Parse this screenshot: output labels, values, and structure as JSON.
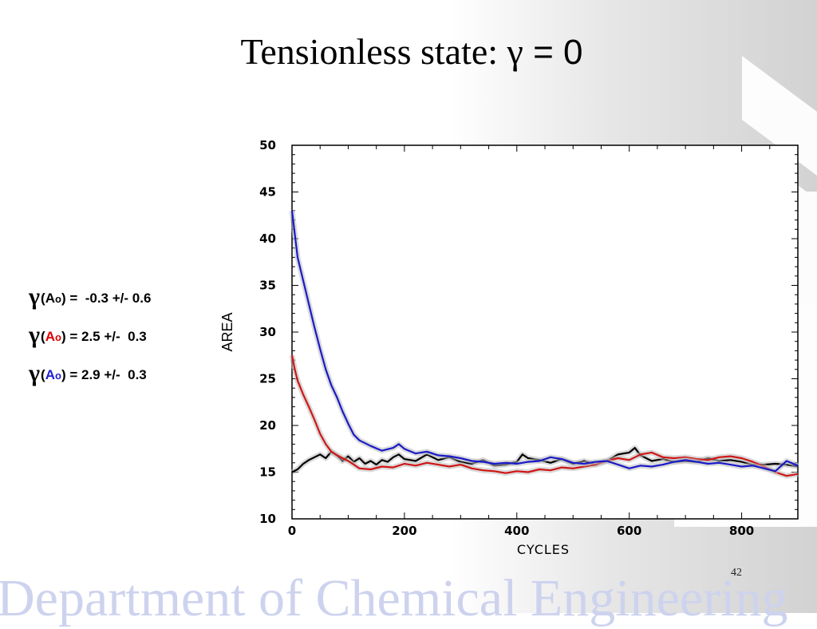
{
  "slide": {
    "title_text": "Tensionless state: ",
    "title_gamma": "γ",
    "title_eq": " = 0",
    "page_number": "42",
    "footer_text": "Department of Chemical Engineering"
  },
  "legend": [
    {
      "gamma": "γ",
      "open": "(",
      "a": "A",
      "sub": "o",
      "close": ")",
      "value_text": " =  -0.3 +/- 0.6",
      "color": "#000000"
    },
    {
      "gamma": "γ",
      "open": "(",
      "a": "A",
      "sub": "o",
      "close": ")",
      "value_text": " = 2.5 +/-  0.3",
      "color": "#e00000"
    },
    {
      "gamma": "γ",
      "open": "(",
      "a": "A",
      "sub": "o",
      "close": ")",
      "value_text": " = 2.9 +/-  0.3",
      "color": "#1f1fd0"
    }
  ],
  "chart_data": {
    "type": "line",
    "xlabel": "CYCLES",
    "ylabel": "AREA",
    "xlim": [
      0,
      900
    ],
    "ylim": [
      10,
      50
    ],
    "xticks": [
      0,
      200,
      400,
      600,
      800
    ],
    "yticks": [
      10,
      15,
      20,
      25,
      30,
      35,
      40,
      45,
      50
    ],
    "grid": false,
    "series": [
      {
        "color": "#000000",
        "points": [
          [
            0,
            15
          ],
          [
            10,
            15.3
          ],
          [
            20,
            15.9
          ],
          [
            30,
            16.3
          ],
          [
            40,
            16.6
          ],
          [
            50,
            16.9
          ],
          [
            60,
            16.5
          ],
          [
            70,
            17.2
          ],
          [
            80,
            16.8
          ],
          [
            90,
            16.2
          ],
          [
            100,
            16.7
          ],
          [
            110,
            16.1
          ],
          [
            120,
            16.5
          ],
          [
            130,
            15.9
          ],
          [
            140,
            16.2
          ],
          [
            150,
            15.8
          ],
          [
            160,
            16.3
          ],
          [
            170,
            16.1
          ],
          [
            180,
            16.6
          ],
          [
            190,
            16.9
          ],
          [
            200,
            16.4
          ],
          [
            220,
            16.2
          ],
          [
            240,
            16.9
          ],
          [
            260,
            16.3
          ],
          [
            280,
            16.6
          ],
          [
            300,
            16.1
          ],
          [
            320,
            15.9
          ],
          [
            340,
            16.3
          ],
          [
            360,
            15.7
          ],
          [
            380,
            15.8
          ],
          [
            400,
            16.1
          ],
          [
            410,
            16.9
          ],
          [
            420,
            16.5
          ],
          [
            440,
            16.3
          ],
          [
            460,
            16
          ],
          [
            480,
            16.4
          ],
          [
            500,
            15.9
          ],
          [
            520,
            16.2
          ],
          [
            540,
            15.8
          ],
          [
            560,
            16.2
          ],
          [
            580,
            16.9
          ],
          [
            600,
            17.1
          ],
          [
            610,
            17.6
          ],
          [
            620,
            16.8
          ],
          [
            640,
            16.2
          ],
          [
            660,
            16.4
          ],
          [
            680,
            16.1
          ],
          [
            700,
            16.2
          ],
          [
            720,
            16.1
          ],
          [
            740,
            16.5
          ],
          [
            760,
            16.2
          ],
          [
            780,
            16.3
          ],
          [
            800,
            16.1
          ],
          [
            820,
            15.8
          ],
          [
            840,
            15.8
          ],
          [
            860,
            15.9
          ],
          [
            880,
            15.8
          ],
          [
            900,
            15.6
          ]
        ]
      },
      {
        "color": "#d01515",
        "points": [
          [
            0,
            27.5
          ],
          [
            5,
            26
          ],
          [
            10,
            24.8
          ],
          [
            20,
            23.3
          ],
          [
            30,
            22
          ],
          [
            40,
            20.6
          ],
          [
            50,
            19.1
          ],
          [
            60,
            18
          ],
          [
            70,
            17.2
          ],
          [
            80,
            16.8
          ],
          [
            90,
            16.5
          ],
          [
            100,
            16.2
          ],
          [
            110,
            15.8
          ],
          [
            120,
            15.4
          ],
          [
            140,
            15.3
          ],
          [
            160,
            15.6
          ],
          [
            180,
            15.5
          ],
          [
            200,
            15.9
          ],
          [
            220,
            15.7
          ],
          [
            240,
            16
          ],
          [
            260,
            15.8
          ],
          [
            280,
            15.6
          ],
          [
            300,
            15.8
          ],
          [
            320,
            15.4
          ],
          [
            340,
            15.2
          ],
          [
            360,
            15.1
          ],
          [
            380,
            14.9
          ],
          [
            400,
            15.1
          ],
          [
            420,
            15
          ],
          [
            440,
            15.3
          ],
          [
            460,
            15.2
          ],
          [
            480,
            15.5
          ],
          [
            500,
            15.4
          ],
          [
            520,
            15.6
          ],
          [
            540,
            15.8
          ],
          [
            560,
            16.2
          ],
          [
            580,
            16.5
          ],
          [
            600,
            16.3
          ],
          [
            620,
            16.9
          ],
          [
            640,
            17.1
          ],
          [
            660,
            16.6
          ],
          [
            680,
            16.5
          ],
          [
            700,
            16.6
          ],
          [
            720,
            16.4
          ],
          [
            740,
            16.3
          ],
          [
            760,
            16.6
          ],
          [
            780,
            16.7
          ],
          [
            800,
            16.5
          ],
          [
            820,
            16.1
          ],
          [
            840,
            15.6
          ],
          [
            860,
            15
          ],
          [
            880,
            14.6
          ],
          [
            900,
            14.8
          ]
        ]
      },
      {
        "color": "#1a1ac8",
        "points": [
          [
            0,
            43
          ],
          [
            5,
            40.5
          ],
          [
            10,
            38
          ],
          [
            20,
            35.5
          ],
          [
            30,
            33
          ],
          [
            40,
            30.5
          ],
          [
            50,
            28.2
          ],
          [
            60,
            26
          ],
          [
            70,
            24.3
          ],
          [
            80,
            23
          ],
          [
            90,
            21.5
          ],
          [
            100,
            20.2
          ],
          [
            110,
            19
          ],
          [
            120,
            18.4
          ],
          [
            130,
            18.1
          ],
          [
            140,
            17.8
          ],
          [
            160,
            17.3
          ],
          [
            180,
            17.6
          ],
          [
            190,
            18
          ],
          [
            200,
            17.5
          ],
          [
            220,
            17
          ],
          [
            240,
            17.2
          ],
          [
            260,
            16.8
          ],
          [
            280,
            16.7
          ],
          [
            300,
            16.5
          ],
          [
            320,
            16.2
          ],
          [
            340,
            16.1
          ],
          [
            360,
            15.9
          ],
          [
            380,
            16
          ],
          [
            400,
            15.9
          ],
          [
            420,
            16.1
          ],
          [
            440,
            16.2
          ],
          [
            460,
            16.6
          ],
          [
            480,
            16.4
          ],
          [
            500,
            16
          ],
          [
            520,
            15.9
          ],
          [
            540,
            16.1
          ],
          [
            560,
            16.2
          ],
          [
            580,
            15.8
          ],
          [
            600,
            15.4
          ],
          [
            620,
            15.7
          ],
          [
            640,
            15.6
          ],
          [
            660,
            15.8
          ],
          [
            680,
            16.1
          ],
          [
            700,
            16.3
          ],
          [
            720,
            16.1
          ],
          [
            740,
            15.9
          ],
          [
            760,
            16
          ],
          [
            780,
            15.8
          ],
          [
            800,
            15.6
          ],
          [
            820,
            15.7
          ],
          [
            840,
            15.4
          ],
          [
            860,
            15.1
          ],
          [
            880,
            16.2
          ],
          [
            900,
            15.7
          ]
        ]
      }
    ]
  }
}
